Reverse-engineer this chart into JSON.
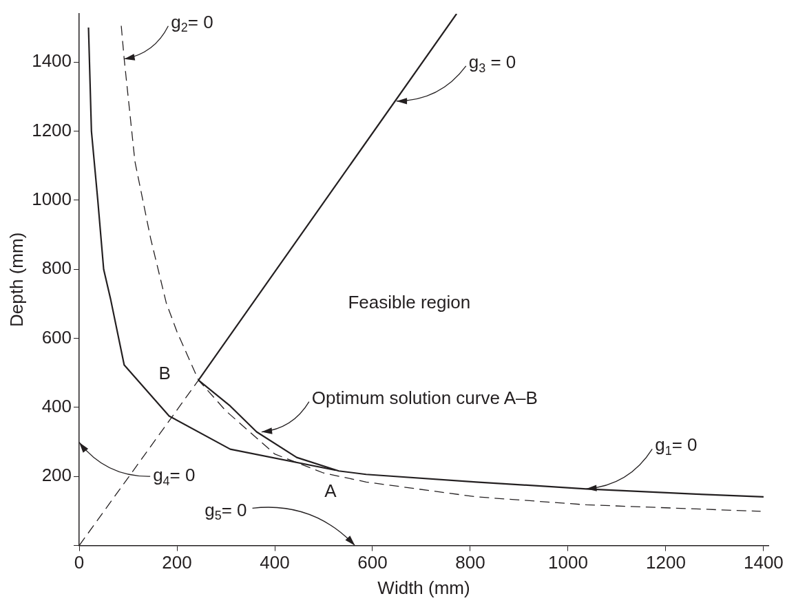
{
  "chart_data": {
    "type": "line",
    "xlabel": "Width (mm)",
    "ylabel": "Depth (mm)",
    "xlim": [
      0,
      1410
    ],
    "ylim": [
      0,
      1540
    ],
    "xticks": [
      0,
      200,
      400,
      600,
      800,
      1000,
      1200,
      1400
    ],
    "yticks": [
      {
        "value": 0,
        "label": null
      },
      200,
      400,
      600,
      800,
      1000,
      1200,
      1400
    ],
    "grid": false,
    "legend": false,
    "marker": "none",
    "series": [
      {
        "color": "#231f20",
        "line_style": "solid",
        "x": [
          244,
          309,
          363,
          445,
          531,
          587,
          812,
          1037,
          1262,
          1400
        ],
        "values": [
          479,
          404,
          329,
          255,
          216,
          206,
          184,
          164,
          149,
          141
        ]
      },
      {
        "color": "#231f20",
        "line_style": "solid",
        "x": [
          244,
          772
        ],
        "values": [
          479,
          1540
        ]
      },
      {
        "color": "#231f20",
        "line_style": "dashed",
        "x": [
          0,
          244
        ],
        "values": [
          0,
          479
        ]
      },
      {
        "color": "#231f20",
        "line_style": "dashed",
        "x": [
          86,
          92,
          114,
          146,
          178,
          200,
          244,
          300,
          400,
          500,
          587,
          812,
          1037,
          1394
        ],
        "values": [
          1505,
          1409,
          1112,
          890,
          703,
          619,
          479,
          390,
          265,
          210,
          184,
          141,
          118,
          99
        ]
      },
      {
        "color": "#231f20",
        "line_style": "solid",
        "x": [
          19,
          25,
          38,
          50,
          64,
          92,
          184,
          309,
          525
        ],
        "values": [
          1500,
          1200,
          1000,
          800,
          715,
          523,
          375,
          279,
          218
        ]
      }
    ],
    "annotations": [
      {
        "text": "g$_{2}$= 0",
        "x": 92,
        "y": 1409
      },
      {
        "text": "g$_{3}$ = 0",
        "x": 649,
        "y": 1287
      },
      "Feasible region",
      {
        "text": "Optimum solution curve A–B",
        "x": 373,
        "y": 329
      },
      {
        "text": "g$_{1}$= 0",
        "x": 1037,
        "y": 164
      },
      "g$_{4}$= 0",
      "g$_{5}$= 0",
      {
        "text": "B",
        "x": 244,
        "y": 479
      },
      {
        "text": "A",
        "x": 531,
        "y": 216
      }
    ]
  }
}
